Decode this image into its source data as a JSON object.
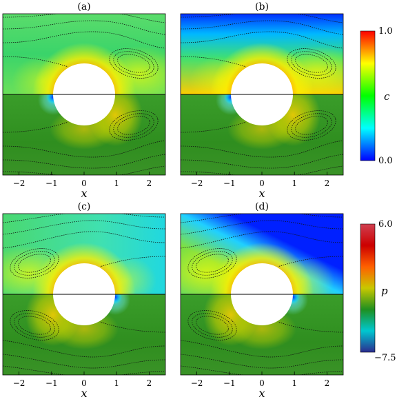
{
  "panels": [
    {
      "id": "a",
      "label": "(a)",
      "top_field": "c",
      "top_style": "sym",
      "bottom_style": "p_sym"
    },
    {
      "id": "b",
      "label": "(b)",
      "top_field": "c",
      "top_style": "asym",
      "bottom_style": "p_sym"
    },
    {
      "id": "c",
      "label": "(c)",
      "top_field": "c",
      "top_style": "sym_mirror",
      "bottom_style": "p_sym_mirror"
    },
    {
      "id": "d",
      "label": "(d)",
      "top_field": "c",
      "top_style": "asym_mirror",
      "bottom_style": "p_sym_mirror"
    }
  ],
  "x_axis": {
    "label": "x",
    "ticks": [
      "−2",
      "−1",
      "0",
      "1",
      "2"
    ],
    "tick_values": [
      -2,
      -1,
      0,
      1,
      2
    ],
    "range": [
      -2.5,
      2.5
    ]
  },
  "colorbars": [
    {
      "field": "c",
      "label": "c",
      "max_label": "1.0",
      "min_label": "0.0",
      "colors": [
        "#0000ff",
        "#00ffff",
        "#00ff00",
        "#ffff00",
        "#ff0000"
      ]
    },
    {
      "field": "p",
      "label": "p",
      "max_label": "6.0",
      "min_label": "−7.5",
      "colors": [
        "#2b2b8f",
        "#00c8d0",
        "#1f8f1f",
        "#c8c800",
        "#ff6000",
        "#cc0000",
        "#d04050"
      ]
    }
  ]
}
